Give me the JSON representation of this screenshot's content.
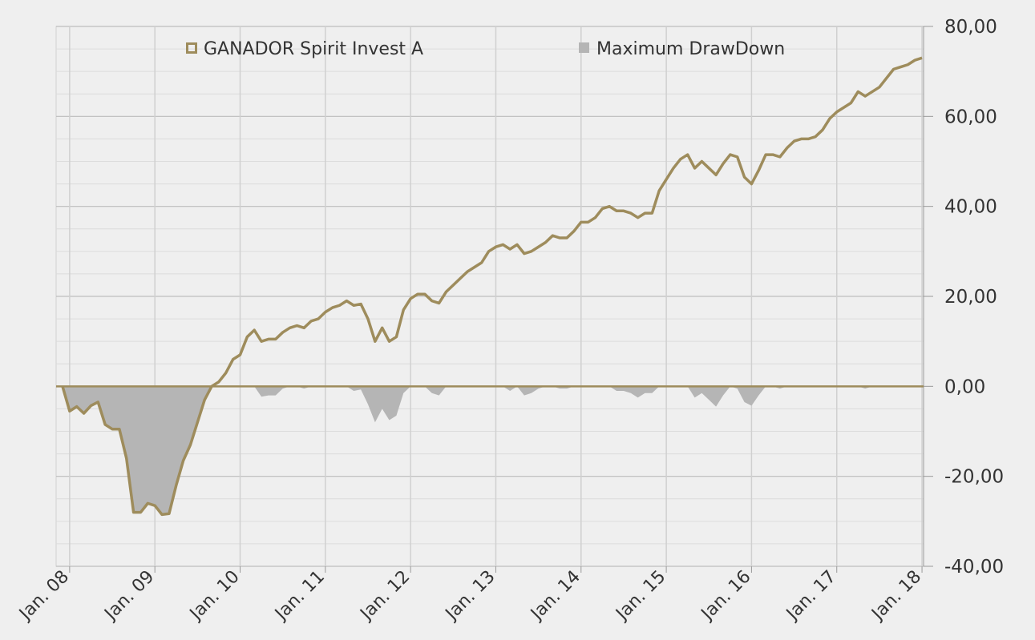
{
  "chart_data": {
    "type": "line",
    "categories": [
      null,
      "Jan. 08",
      null,
      null,
      null,
      null,
      null,
      null,
      null,
      null,
      null,
      null,
      null,
      "Jan. 09",
      null,
      null,
      null,
      null,
      null,
      null,
      null,
      null,
      null,
      null,
      null,
      "Jan. 10",
      null,
      null,
      null,
      null,
      null,
      null,
      null,
      null,
      null,
      null,
      null,
      "Jan. 11",
      null,
      null,
      null,
      null,
      null,
      null,
      null,
      null,
      null,
      null,
      null,
      "Jan. 12",
      null,
      null,
      null,
      null,
      null,
      null,
      null,
      null,
      null,
      null,
      null,
      "Jan. 13",
      null,
      null,
      null,
      null,
      null,
      null,
      null,
      null,
      null,
      null,
      null,
      "Jan. 14",
      null,
      null,
      null,
      null,
      null,
      null,
      null,
      null,
      null,
      null,
      null,
      "Jan. 15",
      null,
      null,
      null,
      null,
      null,
      null,
      null,
      null,
      null,
      null,
      null,
      "Jan. 16",
      null,
      null,
      null,
      null,
      null,
      null,
      null,
      null,
      null,
      null,
      null,
      "Jan. 17",
      null,
      null,
      null,
      null,
      null,
      null,
      null,
      null,
      null,
      null,
      null,
      "Jan. 18"
    ],
    "series": [
      {
        "name": "GANADOR Spirit Invest A",
        "color": "#9e8c5c",
        "type": "line",
        "values": [
          0,
          -5.5,
          -4.5,
          -6,
          -4.3,
          -3.5,
          -8.5,
          -9.5,
          -9.5,
          -16,
          -28,
          -28,
          -26,
          -26.5,
          -28.5,
          -28.3,
          -22,
          -16.5,
          -13,
          -8,
          -3,
          0,
          1,
          3,
          6,
          7,
          11,
          12.5,
          10,
          10.5,
          10.5,
          12,
          13,
          13.5,
          13,
          14.5,
          15,
          16.5,
          17.5,
          18,
          19,
          18,
          18.3,
          15,
          10,
          13,
          10,
          11,
          17,
          19.5,
          20.5,
          20.5,
          19,
          18.5,
          21,
          22.5,
          24,
          25.5,
          26.5,
          27.5,
          30,
          31,
          31.5,
          30.5,
          31.5,
          29.5,
          30,
          31,
          32,
          33.5,
          33,
          33,
          34.5,
          36.5,
          36.5,
          37.5,
          39.5,
          40,
          39,
          39,
          38.5,
          37.5,
          38.5,
          38.5,
          43.5,
          46,
          48.5,
          50.5,
          51.5,
          48.5,
          50,
          48.5,
          47,
          49.5,
          51.5,
          51,
          46.5,
          45,
          48,
          51.5,
          51.5,
          51,
          53,
          54.5,
          55,
          55,
          55.5,
          57,
          59.5,
          61,
          62,
          63,
          65.5,
          64.5,
          65.5,
          66.5,
          68.5,
          70.5,
          71,
          71.5,
          72.5,
          73
        ]
      },
      {
        "name": "Maximum DrawDown",
        "color": "#b5b5b5",
        "type": "area",
        "values": [
          0,
          -5.5,
          -4.5,
          -6,
          -4.3,
          -3.5,
          -8.5,
          -9.5,
          -9.5,
          -16,
          -28,
          -28,
          -26,
          -26.5,
          -28.5,
          -28.3,
          -22,
          -16.5,
          -13,
          -8,
          -3,
          0,
          0,
          0,
          0,
          0,
          0,
          0,
          -2.3,
          -2,
          -2,
          -0.5,
          0,
          0,
          -0.5,
          0,
          0,
          0,
          0,
          0,
          0,
          -1,
          -0.7,
          -4,
          -8,
          -5,
          -7.5,
          -6.5,
          -1.5,
          0,
          0,
          0,
          -1.5,
          -2,
          0,
          0,
          0,
          0,
          0,
          0,
          0,
          0,
          0,
          -1,
          0,
          -2,
          -1.5,
          -0.5,
          0,
          0,
          -0.5,
          -0.5,
          0,
          0,
          0,
          0,
          0,
          0,
          -1,
          -1,
          -1.5,
          -2.5,
          -1.5,
          -1.5,
          0,
          0,
          0,
          0,
          0,
          -2.5,
          -1.5,
          -3,
          -4.5,
          -2,
          0,
          -0.5,
          -3.5,
          -4.3,
          -2,
          0,
          0,
          -0.5,
          0,
          0,
          0,
          0,
          0,
          0,
          0,
          0,
          0,
          0,
          0,
          -0.5,
          0,
          0,
          0,
          0,
          0,
          0,
          0,
          0
        ]
      }
    ],
    "ylim": [
      -40,
      80
    ],
    "yticks": [
      {
        "value": -40,
        "label": "-40,00"
      },
      {
        "value": -20,
        "label": "-20,00"
      },
      {
        "value": 0,
        "label": "0,00"
      },
      {
        "value": 20,
        "label": "20,00"
      },
      {
        "value": 40,
        "label": "40,00"
      },
      {
        "value": 60,
        "label": "60,00"
      },
      {
        "value": 80,
        "label": "80,00"
      }
    ],
    "grid": true,
    "legend": "top"
  }
}
